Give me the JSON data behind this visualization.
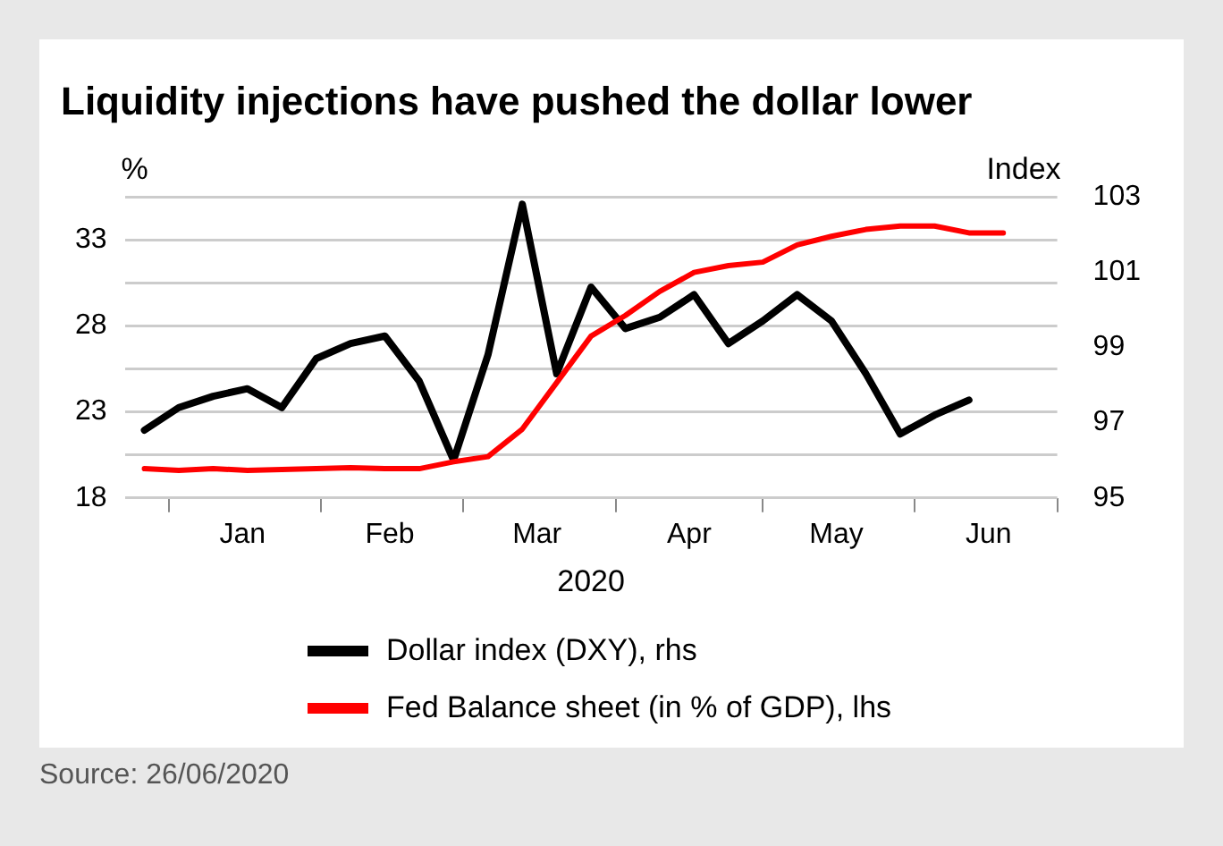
{
  "chart_data": {
    "type": "line",
    "title": "Liquidity injections have pushed the dollar lower",
    "xlabel": "2020",
    "ylabel": "%",
    "y2label": "Index",
    "x": [
      "2019-12-27",
      "2020-01-03",
      "2020-01-10",
      "2020-01-17",
      "2020-01-24",
      "2020-01-31",
      "2020-02-07",
      "2020-02-14",
      "2020-02-21",
      "2020-02-28",
      "2020-03-06",
      "2020-03-13",
      "2020-03-20",
      "2020-03-27",
      "2020-04-03",
      "2020-04-10",
      "2020-04-17",
      "2020-04-24",
      "2020-05-01",
      "2020-05-08",
      "2020-05-15",
      "2020-05-22",
      "2020-05-29",
      "2020-06-05",
      "2020-06-12",
      "2020-06-19"
    ],
    "series": [
      {
        "name": "Dollar index (DXY), rhs",
        "color": "#000000",
        "axis": "y2",
        "values": [
          96.8,
          97.4,
          97.7,
          97.9,
          97.4,
          98.7,
          99.1,
          99.3,
          98.1,
          96.0,
          98.8,
          102.8,
          98.3,
          100.6,
          99.5,
          99.8,
          100.4,
          99.1,
          99.7,
          100.4,
          99.7,
          98.3,
          96.7,
          97.2,
          97.6,
          null
        ]
      },
      {
        "name": "Fed Balance sheet (in % of GDP), lhs",
        "color": "#ff0000",
        "values": [
          19.7,
          19.6,
          19.7,
          19.6,
          19.65,
          19.7,
          19.75,
          19.7,
          19.7,
          20.1,
          20.4,
          22.0,
          24.7,
          27.4,
          28.6,
          30.0,
          31.1,
          31.5,
          31.7,
          32.7,
          33.2,
          33.6,
          33.8,
          33.8,
          33.4,
          33.4
        ]
      }
    ],
    "xlim": [
      "2019-12-23",
      "2020-06-30"
    ],
    "xticks": [
      {
        "value": "2020-01-01",
        "label": null
      },
      {
        "value": "2020-01-16",
        "label": "Jan"
      },
      {
        "value": "2020-02-01",
        "label": null
      },
      {
        "value": "2020-02-15",
        "label": "Feb"
      },
      {
        "value": "2020-03-01",
        "label": null
      },
      {
        "value": "2020-03-16",
        "label": "Mar"
      },
      {
        "value": "2020-04-01",
        "label": null
      },
      {
        "value": "2020-04-16",
        "label": "Apr"
      },
      {
        "value": "2020-05-01",
        "label": null
      },
      {
        "value": "2020-05-16",
        "label": "May"
      },
      {
        "value": "2020-06-01",
        "label": null
      },
      {
        "value": "2020-06-16",
        "label": "Jun"
      },
      {
        "value": "2020-06-30",
        "label": null
      }
    ],
    "ylim": [
      18,
      35.5
    ],
    "yticks": [
      18,
      {
        "value": 20.5,
        "label": null
      },
      23,
      {
        "value": 25.5,
        "label": null
      },
      28,
      {
        "value": 30.5,
        "label": null
      },
      33,
      {
        "value": 35.5,
        "label": null
      }
    ],
    "y2lim": [
      95,
      103
    ],
    "y2ticks": [
      95,
      97,
      99,
      101,
      103
    ],
    "grid": "y",
    "legend": "bottom",
    "marker": "none",
    "line_style": "solid",
    "annotations": [
      "Source: 26/06/2020"
    ]
  }
}
